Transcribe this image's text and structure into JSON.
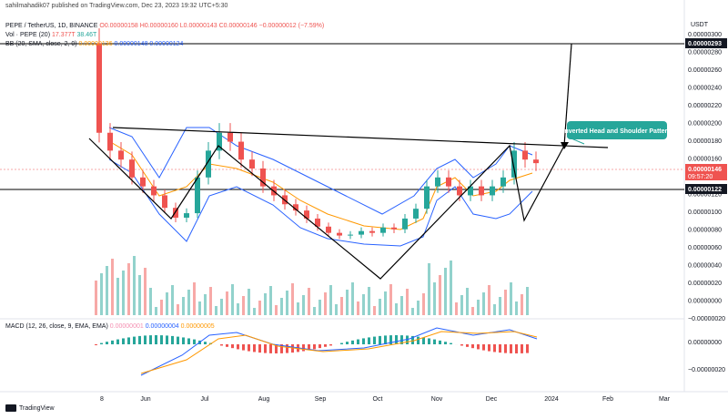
{
  "header": "sahilmahadik07 published on TradingView.com, Dec 23, 2023 19:32 UTC+5:30",
  "legend": {
    "pair": "PEPE / TetherUS, 1D, BINANCE",
    "o": "O0.00000158",
    "h": "H0.00000160",
    "l": "L0.00000143",
    "c": "C0.00000146",
    "chg": "−0.00000012 (−7.59%)",
    "vol_label": "Vol · PEPE (20)",
    "vol1": "17.377T",
    "vol2": "38.46T",
    "bb_label": "BB (20, SMA, close, 2, 0)",
    "bb1": "0.00000136",
    "bb2": "0.00000148",
    "bb3": "0.00000124",
    "macd_label": "MACD (12, 26, close, 9, EMA, EMA)",
    "macd1": "0.00000001",
    "macd2": "0.00000004",
    "macd3": "0.00000005"
  },
  "currency": "USDT",
  "brand": "TradingView",
  "colors": {
    "up": "#26a69a",
    "down": "#ef5350",
    "bb": "#2962ff",
    "basis": "#ff9800",
    "signal": "#ff9800",
    "macd": "#2962ff",
    "pattern": "#000000",
    "callout": "#26a69a"
  },
  "chart_data": {
    "type": "candlestick",
    "x_ticks": [
      "8",
      "Jun",
      "Jul",
      "Aug",
      "Sep",
      "Oct",
      "Nov",
      "Dec",
      "2024",
      "Feb",
      "Mar"
    ],
    "y_ticks": [
      "0.00000300",
      "0.00000280",
      "0.00000260",
      "0.00000240",
      "0.00000220",
      "0.00000200",
      "0.00000180",
      "0.00000160",
      "0.00000140",
      "0.00000120",
      "0.00000100",
      "0.00000080",
      "0.00000060",
      "0.00000040",
      "0.00000020",
      "0.00000000",
      "−0.00000020"
    ],
    "price_labels": {
      "resistance": "0.00000293",
      "current": "0.00000146",
      "current_time": "09:57:20",
      "support": "0.00000122"
    },
    "macd_ticks": [
      "0.00000000",
      "−0.00000020"
    ],
    "annotation": "Inverted Head and Shoulder Pattern",
    "ylim": [
      -2e-07,
      3e-06
    ],
    "candles_close": [
      1.8e-06,
      1.6e-06,
      1.5e-06,
      1.3e-06,
      1.2e-06,
      1.1e-06,
      9.6e-07,
      8.5e-07,
      9e-07,
      1.3e-06,
      1.6e-06,
      1.8e-06,
      1.7e-06,
      1.5e-06,
      1.4e-06,
      1.2e-06,
      1.1e-06,
      1e-06,
      9.3e-07,
      8.4e-07,
      7.5e-07,
      6.8e-07,
      6.5e-07,
      6.6e-07,
      7e-07,
      6.8e-07,
      7.4e-07,
      7.2e-07,
      8.4e-07,
      9.5e-07,
      1.2e-06,
      1.3e-06,
      1.2e-06,
      1.1e-06,
      1.2e-06,
      1.1e-06,
      1.2e-06,
      1.3e-06,
      1.6e-06,
      1.5e-06,
      1.46e-06
    ]
  }
}
